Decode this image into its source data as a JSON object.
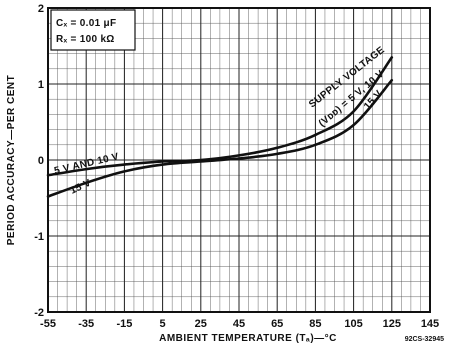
{
  "chart_data": {
    "type": "line",
    "title": "",
    "xlabel": "AMBIENT TEMPERATURE (Tₐ)—°C",
    "ylabel": "PERIOD ACCURACY—PER CENT",
    "xlim": [
      -55,
      145
    ],
    "ylim": [
      -2,
      2
    ],
    "x_ticks": [
      "-55",
      "-35",
      "-15",
      "5",
      "25",
      "45",
      "65",
      "85",
      "105",
      "125",
      "145"
    ],
    "y_ticks": [
      "2",
      "1",
      "0",
      "-1",
      "-2"
    ],
    "grid": true,
    "conditions": [
      "Cₓ = 0.01 μF",
      "Rₓ = 100 kΩ"
    ],
    "figure_code": "92CS-32945",
    "series": [
      {
        "name": "5 V, 10 V",
        "points": [
          [
            -55,
            -0.2
          ],
          [
            -35,
            -0.12
          ],
          [
            -15,
            -0.06
          ],
          [
            5,
            -0.02
          ],
          [
            25,
            0.0
          ],
          [
            45,
            0.06
          ],
          [
            65,
            0.16
          ],
          [
            85,
            0.33
          ],
          [
            105,
            0.64
          ],
          [
            125,
            1.35
          ]
        ]
      },
      {
        "name": "15 V",
        "points": [
          [
            -55,
            -0.48
          ],
          [
            -35,
            -0.3
          ],
          [
            -15,
            -0.15
          ],
          [
            5,
            -0.06
          ],
          [
            25,
            -0.02
          ],
          [
            45,
            0.02
          ],
          [
            65,
            0.08
          ],
          [
            85,
            0.2
          ],
          [
            105,
            0.46
          ],
          [
            125,
            1.05
          ]
        ]
      }
    ],
    "annotations": {
      "supply_voltage": "SUPPLY VOLTAGE",
      "vdd": "(Vᴅᴅ) = 5 V, 10 V",
      "v15_right": "15 V",
      "v5_10_left": "5 V AND 10 V",
      "v15_left": "15 V"
    }
  }
}
